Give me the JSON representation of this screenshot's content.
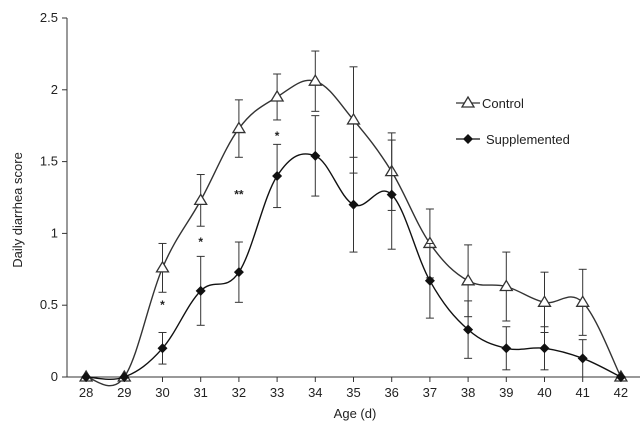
{
  "chart_data": {
    "type": "line",
    "title": "",
    "xlabel": "Age (d)",
    "ylabel": "Daily diarrhea score",
    "x": [
      28,
      29,
      30,
      31,
      32,
      33,
      34,
      35,
      36,
      37,
      38,
      39,
      40,
      41,
      42
    ],
    "xlim": [
      27.5,
      42.5
    ],
    "ylim": [
      0,
      2.5
    ],
    "yticks": [
      "0",
      "0.5",
      "1",
      "1.5",
      "2",
      "2.5"
    ],
    "grid": false,
    "legend": "right",
    "series": [
      {
        "name": "Control",
        "marker": "open-triangle",
        "color": "#333333",
        "values": [
          0,
          0,
          0.76,
          1.23,
          1.73,
          1.95,
          2.06,
          1.79,
          1.43,
          0.93,
          0.67,
          0.63,
          0.52,
          0.52,
          0
        ],
        "errors": [
          0,
          0,
          0.17,
          0.18,
          0.2,
          0.16,
          0.21,
          0.37,
          0.27,
          0.24,
          0.25,
          0.24,
          0.21,
          0.23,
          0
        ]
      },
      {
        "name": "Supplemented",
        "marker": "filled-diamond",
        "color": "#111111",
        "values": [
          0,
          0,
          0.2,
          0.6,
          0.73,
          1.4,
          1.54,
          1.2,
          1.27,
          0.67,
          0.33,
          0.2,
          0.2,
          0.13,
          0
        ],
        "errors": [
          0,
          0,
          0.11,
          0.24,
          0.21,
          0.22,
          0.28,
          0.33,
          0.38,
          0.26,
          0.2,
          0.15,
          0.15,
          0.13,
          0
        ]
      }
    ],
    "annotations": [
      {
        "x": 30,
        "y": 0.5,
        "text": "*"
      },
      {
        "x": 31,
        "y": 0.94,
        "text": "*"
      },
      {
        "x": 32,
        "y": 1.27,
        "text": "**"
      },
      {
        "x": 33,
        "y": 1.68,
        "text": "*"
      }
    ]
  }
}
